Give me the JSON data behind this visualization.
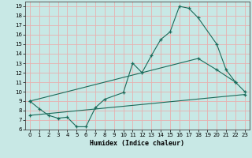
{
  "xlabel": "Humidex (Indice chaleur)",
  "background_color": "#c8e8e5",
  "grid_color": "#e8b0b0",
  "line_color": "#1a6b5a",
  "xlim": [
    -0.5,
    23.5
  ],
  "ylim": [
    6,
    19.5
  ],
  "xticks": [
    0,
    1,
    2,
    3,
    4,
    5,
    6,
    7,
    8,
    9,
    10,
    11,
    12,
    13,
    14,
    15,
    16,
    17,
    18,
    19,
    20,
    21,
    22,
    23
  ],
  "yticks": [
    6,
    7,
    8,
    9,
    10,
    11,
    12,
    13,
    14,
    15,
    16,
    17,
    18,
    19
  ],
  "line1_x": [
    0,
    1,
    2,
    3,
    4,
    5,
    6,
    7,
    8,
    10,
    11,
    12,
    13,
    14,
    15,
    16,
    17,
    18,
    20,
    21,
    22,
    23
  ],
  "line1_y": [
    9.0,
    8.2,
    7.5,
    7.2,
    7.3,
    6.3,
    6.3,
    8.3,
    9.2,
    9.9,
    13.0,
    12.0,
    13.8,
    15.5,
    16.3,
    19.0,
    18.8,
    17.8,
    15.0,
    12.3,
    11.0,
    10.0
  ],
  "line2_x": [
    0,
    18,
    20,
    22
  ],
  "line2_y": [
    9.0,
    13.5,
    12.3,
    11.0
  ],
  "line3_x": [
    0,
    23
  ],
  "line3_y": [
    7.5,
    9.7
  ]
}
